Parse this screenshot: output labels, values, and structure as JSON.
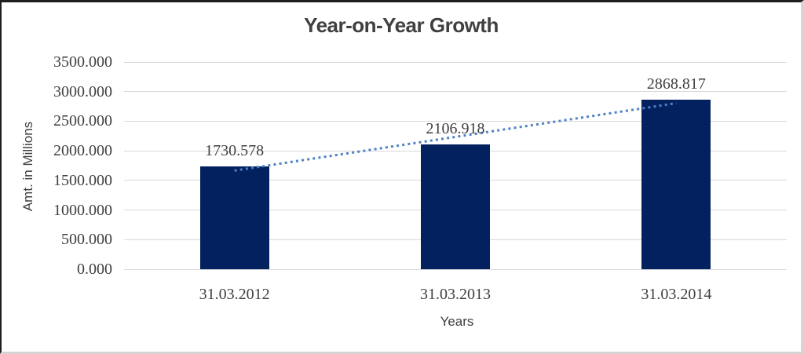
{
  "frame": {
    "dark_border_color": "#1f1f1f",
    "light_border_color": "#d5d5d5"
  },
  "chart_data": {
    "type": "bar",
    "title": "Year-on-Year Growth",
    "categories": [
      "31.03.2012",
      "31.03.2013",
      "31.03.2014"
    ],
    "values": [
      1730.578,
      2106.918,
      2868.817
    ],
    "bar_labels": [
      "1730.578",
      "2106.918",
      "2868.817"
    ],
    "xlabel": "Years",
    "ylabel": "Amt. in Millions",
    "ylim": [
      0,
      3500
    ],
    "ytick_step": 500,
    "ytick_labels": [
      "3500.000",
      "3000.000",
      "2500.000",
      "2000.000",
      "1500.000",
      "1000.000",
      "500.000",
      "0.000"
    ],
    "grid": true,
    "legend": false,
    "trendline": {
      "type": "linear",
      "style": "dotted",
      "color": "#4e82c4"
    },
    "colors": {
      "bar": "#03215f",
      "gridline": "#d9d9d9",
      "text": "#3f3f3f",
      "title": "#404040"
    }
  }
}
